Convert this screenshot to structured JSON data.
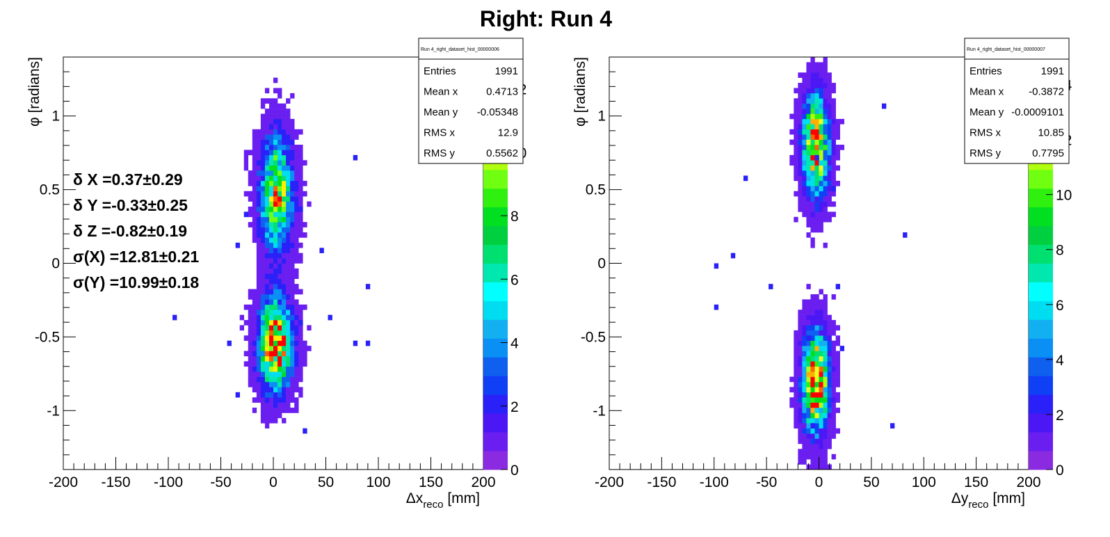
{
  "title": "Right: Run 4",
  "chart_data": [
    {
      "type": "heatmap",
      "stats_title": "Run 4_right_dataset_hist_00000006",
      "xlabel": {
        "main": "Δx",
        "sub": "reco",
        "unit": " [mm]"
      },
      "ylabel": "φ [radians]",
      "xlim": [
        -200,
        200
      ],
      "ylim": [
        -1.4,
        1.4
      ],
      "xticks": [
        -200,
        -150,
        -100,
        -50,
        0,
        50,
        100,
        150,
        200
      ],
      "yticks": [
        -1,
        -0.5,
        0,
        0.5,
        1
      ],
      "zlim": [
        0,
        13
      ],
      "zticks": [
        0,
        2,
        4,
        6,
        8,
        10,
        12
      ],
      "stats": [
        {
          "label": "Entries",
          "value": "1991"
        },
        {
          "label": "Mean x",
          "value": "0.4713"
        },
        {
          "label": "Mean y",
          "value": "-0.05348"
        },
        {
          "label": "RMS x",
          "value": "12.9"
        },
        {
          "label": "RMS y",
          "value": "0.5562"
        }
      ],
      "fit_results": [
        "δ X =0.37±0.29",
        "δ Y =-0.33±0.25",
        "δ Z =-0.82±0.19",
        "σ(X) =12.81±0.21",
        "σ(Y) =10.99±0.18"
      ],
      "clusters": [
        {
          "x_mean": 3,
          "x_sigma": 10,
          "y_mean": 0.48,
          "y_sigma": 0.24,
          "peak": 10
        },
        {
          "x_mean": 2,
          "x_sigma": 10,
          "y_mean": -0.55,
          "y_sigma": 0.2,
          "peak": 13
        }
      ]
    },
    {
      "type": "heatmap",
      "stats_title": "Run 4_right_dataset_hist_00000007",
      "xlabel": {
        "main": "Δy",
        "sub": "reco",
        "unit": " [mm]"
      },
      "ylabel": "φ [radians]",
      "xlim": [
        -200,
        200
      ],
      "ylim": [
        -1.4,
        1.4
      ],
      "xticks": [
        -200,
        -150,
        -100,
        -50,
        0,
        50,
        100,
        150,
        200
      ],
      "yticks": [
        -1,
        -0.5,
        0,
        0.5,
        1
      ],
      "zlim": [
        0,
        15
      ],
      "zticks": [
        0,
        2,
        4,
        6,
        8,
        10,
        12,
        14
      ],
      "stats": [
        {
          "label": "Entries",
          "value": "1991"
        },
        {
          "label": "Mean x",
          "value": "-0.3872"
        },
        {
          "label": "Mean y",
          "value": "-0.0009101"
        },
        {
          "label": "RMS x",
          "value": "10.85"
        },
        {
          "label": "RMS y",
          "value": "0.7795"
        }
      ],
      "fit_results": [],
      "clusters": [
        {
          "x_mean": -3,
          "x_sigma": 8,
          "y_mean": 0.8,
          "y_sigma": 0.22,
          "peak": 14
        },
        {
          "x_mean": -3,
          "x_sigma": 8,
          "y_mean": -0.8,
          "y_sigma": 0.22,
          "peak": 15
        }
      ]
    }
  ]
}
